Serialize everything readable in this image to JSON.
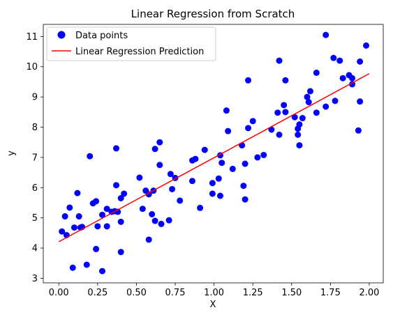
{
  "chart_data": {
    "type": "scatter",
    "title": "Linear Regression from Scratch",
    "xlabel": "X",
    "ylabel": "y",
    "xlim": [
      -0.1,
      2.09
    ],
    "ylim": [
      2.85,
      11.4
    ],
    "xticks": [
      0.0,
      0.25,
      0.5,
      0.75,
      1.0,
      1.25,
      1.5,
      1.75,
      2.0
    ],
    "xtick_labels": [
      "0.00",
      "0.25",
      "0.50",
      "0.75",
      "1.00",
      "1.25",
      "1.50",
      "1.75",
      "2.00"
    ],
    "yticks": [
      3,
      4,
      5,
      6,
      7,
      8,
      9,
      10,
      11
    ],
    "ytick_labels": [
      "3",
      "4",
      "5",
      "6",
      "7",
      "8",
      "9",
      "10",
      "11"
    ],
    "grid": false,
    "legend": {
      "position": "upper-left",
      "entries": [
        "Data points",
        "Linear Regression Prediction"
      ]
    },
    "series": [
      {
        "name": "Data points",
        "kind": "scatter",
        "color": "#0000ff",
        "points": [
          [
            0.02,
            4.55
          ],
          [
            0.04,
            5.05
          ],
          [
            0.05,
            4.43
          ],
          [
            0.07,
            5.34
          ],
          [
            0.09,
            3.35
          ],
          [
            0.1,
            4.68
          ],
          [
            0.12,
            5.82
          ],
          [
            0.13,
            5.05
          ],
          [
            0.14,
            4.68
          ],
          [
            0.15,
            4.7
          ],
          [
            0.18,
            3.45
          ],
          [
            0.2,
            7.04
          ],
          [
            0.22,
            5.48
          ],
          [
            0.24,
            3.97
          ],
          [
            0.24,
            5.55
          ],
          [
            0.25,
            4.72
          ],
          [
            0.28,
            3.24
          ],
          [
            0.28,
            5.1
          ],
          [
            0.31,
            5.3
          ],
          [
            0.31,
            4.72
          ],
          [
            0.34,
            5.2
          ],
          [
            0.36,
            5.22
          ],
          [
            0.37,
            7.3
          ],
          [
            0.37,
            6.08
          ],
          [
            0.38,
            5.2
          ],
          [
            0.4,
            3.87
          ],
          [
            0.4,
            4.87
          ],
          [
            0.4,
            5.65
          ],
          [
            0.42,
            5.8
          ],
          [
            0.52,
            6.33
          ],
          [
            0.54,
            5.3
          ],
          [
            0.56,
            5.9
          ],
          [
            0.58,
            4.28
          ],
          [
            0.58,
            5.78
          ],
          [
            0.6,
            5.12
          ],
          [
            0.61,
            5.9
          ],
          [
            0.62,
            7.28
          ],
          [
            0.62,
            4.9
          ],
          [
            0.65,
            6.75
          ],
          [
            0.65,
            7.5
          ],
          [
            0.66,
            4.8
          ],
          [
            0.71,
            4.92
          ],
          [
            0.72,
            6.45
          ],
          [
            0.73,
            5.95
          ],
          [
            0.75,
            6.32
          ],
          [
            0.78,
            5.57
          ],
          [
            0.86,
            6.9
          ],
          [
            0.86,
            6.22
          ],
          [
            0.88,
            6.95
          ],
          [
            0.91,
            5.33
          ],
          [
            0.94,
            7.25
          ],
          [
            0.99,
            5.8
          ],
          [
            0.99,
            6.15
          ],
          [
            1.03,
            6.3
          ],
          [
            1.04,
            7.07
          ],
          [
            1.04,
            5.73
          ],
          [
            1.05,
            6.82
          ],
          [
            1.08,
            8.55
          ],
          [
            1.09,
            7.87
          ],
          [
            1.12,
            6.62
          ],
          [
            1.18,
            7.4
          ],
          [
            1.19,
            6.06
          ],
          [
            1.2,
            6.79
          ],
          [
            1.2,
            5.61
          ],
          [
            1.22,
            9.55
          ],
          [
            1.22,
            7.97
          ],
          [
            1.25,
            8.2
          ],
          [
            1.28,
            7.0
          ],
          [
            1.32,
            7.08
          ],
          [
            1.37,
            7.92
          ],
          [
            1.41,
            8.48
          ],
          [
            1.42,
            10.2
          ],
          [
            1.42,
            7.75
          ],
          [
            1.45,
            8.73
          ],
          [
            1.46,
            8.5
          ],
          [
            1.46,
            9.55
          ],
          [
            1.52,
            8.33
          ],
          [
            1.54,
            7.75
          ],
          [
            1.54,
            7.95
          ],
          [
            1.55,
            7.4
          ],
          [
            1.55,
            8.09
          ],
          [
            1.57,
            8.3
          ],
          [
            1.6,
            9.0
          ],
          [
            1.61,
            8.83
          ],
          [
            1.62,
            9.19
          ],
          [
            1.66,
            9.8
          ],
          [
            1.66,
            8.48
          ],
          [
            1.72,
            11.05
          ],
          [
            1.72,
            8.68
          ],
          [
            1.77,
            10.29
          ],
          [
            1.78,
            8.87
          ],
          [
            1.81,
            10.2
          ],
          [
            1.83,
            9.62
          ],
          [
            1.87,
            9.72
          ],
          [
            1.89,
            9.62
          ],
          [
            1.89,
            9.42
          ],
          [
            1.93,
            7.89
          ],
          [
            1.94,
            8.85
          ],
          [
            1.94,
            10.17
          ],
          [
            1.98,
            10.7
          ]
        ]
      },
      {
        "name": "Linear Regression Prediction",
        "kind": "line",
        "color": "#ff0000",
        "points": [
          [
            0.0,
            4.21
          ],
          [
            2.0,
            9.77
          ]
        ]
      }
    ]
  }
}
